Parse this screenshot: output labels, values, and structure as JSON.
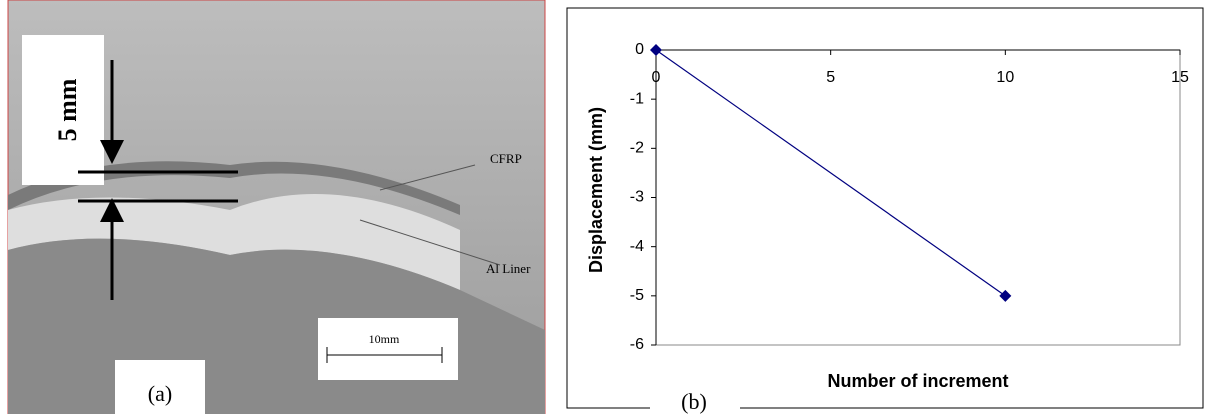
{
  "chart_data": {
    "type": "line",
    "x": [
      0,
      10
    ],
    "series": [
      {
        "color": "#000080",
        "values": [
          0,
          -5
        ]
      }
    ],
    "marker": "diamond",
    "xlabel": "Number of increment",
    "ylabel": "Displacement (mm)",
    "xlim": [
      0,
      15
    ],
    "xticks": [
      0,
      5,
      10,
      15
    ],
    "ylim": [
      -6,
      0
    ],
    "yticks": [
      0,
      -1,
      -2,
      -3,
      -4,
      -5,
      -6
    ],
    "panel_label": "(b)"
  },
  "panel_a": {
    "panel_label": "(a)",
    "gap_label": "5 mm",
    "layer_labels": [
      "CFRP",
      "Al Liner"
    ],
    "scale_bar": "10mm"
  }
}
